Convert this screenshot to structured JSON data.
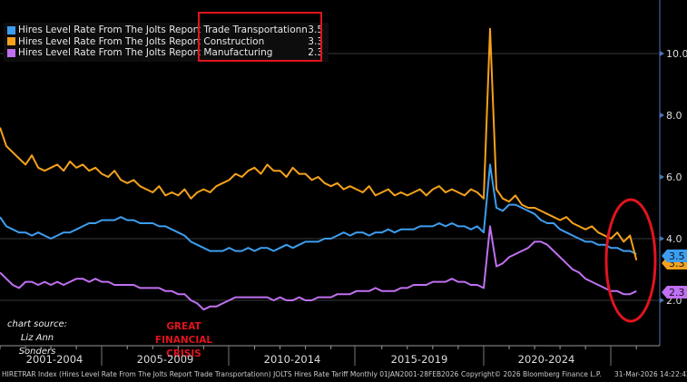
{
  "chart_data": {
    "type": "line",
    "title": "",
    "xlabel": "",
    "ylabel": "",
    "x_start": "2001-Q1",
    "x_frequency": "quarterly",
    "ylim": [
      1.0,
      11.2
    ],
    "y_ticks": [
      "2.0",
      "4.0",
      "6.0",
      "8.0",
      "10.0"
    ],
    "y_axis_side": "right",
    "x_period_labels": [
      "2001-2004",
      "2005-2009",
      "2010-2014",
      "2015-2019",
      "2020-2024"
    ],
    "legend_placement": "top-left",
    "series": [
      {
        "name": "Hires Level Rate From The Jolts Report Trade Transportationn",
        "last": "3.5",
        "color": "#3d9ef0",
        "values": [
          4.7,
          4.4,
          4.3,
          4.2,
          4.2,
          4.1,
          4.2,
          4.1,
          4.0,
          4.1,
          4.2,
          4.2,
          4.3,
          4.4,
          4.5,
          4.5,
          4.6,
          4.6,
          4.6,
          4.7,
          4.6,
          4.6,
          4.5,
          4.5,
          4.5,
          4.4,
          4.4,
          4.3,
          4.2,
          4.1,
          3.9,
          3.8,
          3.7,
          3.6,
          3.6,
          3.6,
          3.7,
          3.6,
          3.6,
          3.7,
          3.6,
          3.7,
          3.7,
          3.6,
          3.7,
          3.8,
          3.7,
          3.8,
          3.9,
          3.9,
          3.9,
          4.0,
          4.0,
          4.1,
          4.2,
          4.1,
          4.2,
          4.2,
          4.1,
          4.2,
          4.2,
          4.3,
          4.2,
          4.3,
          4.3,
          4.3,
          4.4,
          4.4,
          4.4,
          4.5,
          4.4,
          4.5,
          4.4,
          4.4,
          4.3,
          4.4,
          4.2,
          6.4,
          5.0,
          4.9,
          5.1,
          5.1,
          5.0,
          4.9,
          4.8,
          4.6,
          4.5,
          4.5,
          4.3,
          4.2,
          4.1,
          4.0,
          3.9,
          3.9,
          3.8,
          3.8,
          3.7,
          3.7,
          3.6,
          3.6,
          3.5
        ]
      },
      {
        "name": "Hires Level Rate From The Jolts Report Construction",
        "last": "3.3",
        "color": "#f5a11c",
        "values": [
          7.6,
          7.0,
          6.8,
          6.6,
          6.4,
          6.7,
          6.3,
          6.2,
          6.3,
          6.4,
          6.2,
          6.5,
          6.3,
          6.4,
          6.2,
          6.3,
          6.1,
          6.0,
          6.2,
          5.9,
          5.8,
          5.9,
          5.7,
          5.6,
          5.5,
          5.7,
          5.4,
          5.5,
          5.4,
          5.6,
          5.3,
          5.5,
          5.6,
          5.5,
          5.7,
          5.8,
          5.9,
          6.1,
          6.0,
          6.2,
          6.3,
          6.1,
          6.4,
          6.2,
          6.2,
          6.0,
          6.3,
          6.1,
          6.1,
          5.9,
          6.0,
          5.8,
          5.7,
          5.8,
          5.6,
          5.7,
          5.6,
          5.5,
          5.7,
          5.4,
          5.5,
          5.6,
          5.4,
          5.5,
          5.4,
          5.5,
          5.6,
          5.4,
          5.6,
          5.7,
          5.5,
          5.6,
          5.5,
          5.4,
          5.6,
          5.5,
          5.3,
          10.8,
          5.6,
          5.3,
          5.2,
          5.4,
          5.1,
          5.0,
          5.0,
          4.9,
          4.8,
          4.7,
          4.6,
          4.7,
          4.5,
          4.4,
          4.3,
          4.4,
          4.2,
          4.1,
          4.0,
          4.2,
          3.9,
          4.1,
          3.3
        ]
      },
      {
        "name": "Hires Level Rate From The Jolts Report Manufacturing",
        "last": "2.3",
        "color": "#c070f0",
        "values": [
          2.9,
          2.7,
          2.5,
          2.4,
          2.6,
          2.6,
          2.5,
          2.6,
          2.5,
          2.6,
          2.5,
          2.6,
          2.7,
          2.7,
          2.6,
          2.7,
          2.6,
          2.6,
          2.5,
          2.5,
          2.5,
          2.5,
          2.4,
          2.4,
          2.4,
          2.4,
          2.3,
          2.3,
          2.2,
          2.2,
          2.0,
          1.9,
          1.7,
          1.8,
          1.8,
          1.9,
          2.0,
          2.1,
          2.1,
          2.1,
          2.1,
          2.1,
          2.1,
          2.0,
          2.1,
          2.0,
          2.0,
          2.1,
          2.0,
          2.0,
          2.1,
          2.1,
          2.1,
          2.2,
          2.2,
          2.2,
          2.3,
          2.3,
          2.3,
          2.4,
          2.3,
          2.3,
          2.3,
          2.4,
          2.4,
          2.5,
          2.5,
          2.5,
          2.6,
          2.6,
          2.6,
          2.7,
          2.6,
          2.6,
          2.5,
          2.5,
          2.4,
          4.4,
          3.1,
          3.2,
          3.4,
          3.5,
          3.6,
          3.7,
          3.9,
          3.9,
          3.8,
          3.6,
          3.4,
          3.2,
          3.0,
          2.9,
          2.7,
          2.6,
          2.5,
          2.4,
          2.3,
          2.3,
          2.2,
          2.2,
          2.3
        ]
      }
    ],
    "annotations": {
      "source": "chart source: Liz Ann Sonders",
      "crisis": "GREAT FINANCIAL CRISIS"
    }
  },
  "legend": [
    {
      "prefix": "Hires Level Rate From The Jolts Report",
      "suffix": "Trade Transportationn",
      "value": "3.5"
    },
    {
      "prefix": "Hires Level Rate From The Jolts Report",
      "suffix": "Construction",
      "value": "3.3"
    },
    {
      "prefix": "Hires Level Rate From The Jolts Report",
      "suffix": "Manufacturing",
      "value": "2.3"
    }
  ],
  "footer": {
    "description": "HIRETRAR Index (Hires Level Rate From The Jolts Report Trade Transportationn) JOLTS Hires Rate Tariff Monthly 01JAN2001-28FEB2026",
    "copyright": "Copyright© 2026 Bloomberg Finance L.P.",
    "timestamp": "31-Mar-2026 14:22:42"
  }
}
